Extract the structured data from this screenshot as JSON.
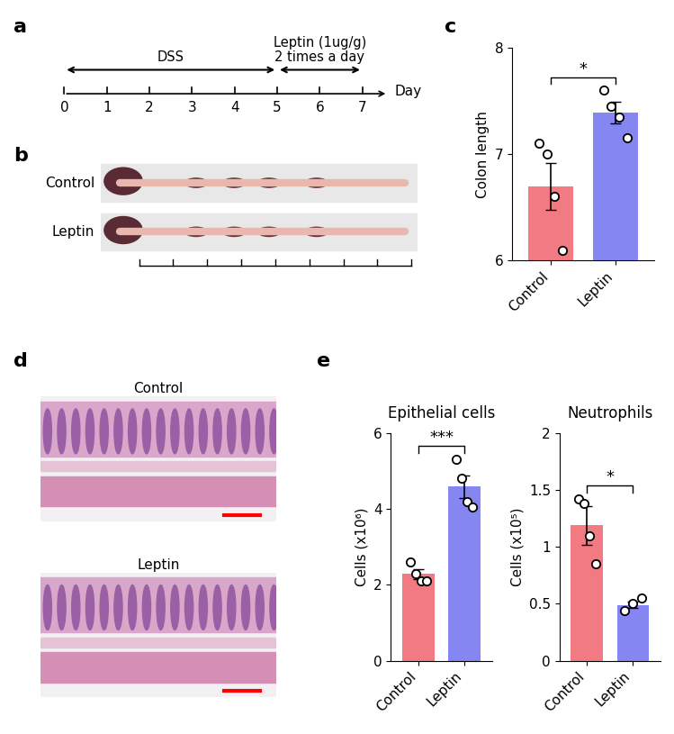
{
  "panel_labels": [
    "a",
    "b",
    "c",
    "d",
    "e"
  ],
  "timeline": {
    "days": [
      0,
      1,
      2,
      3,
      4,
      5,
      6,
      7
    ],
    "axis_label": "Day",
    "phases": [
      {
        "label": "DSS",
        "start": 0,
        "end": 5
      },
      {
        "label": "Leptin (1ug/g)\n2 times a day",
        "start": 5,
        "end": 7
      }
    ]
  },
  "photos": {
    "rows": [
      "Control",
      "Leptin"
    ]
  },
  "histology": {
    "rows": [
      "Control",
      "Leptin"
    ]
  },
  "chart_data": [
    {
      "type": "bar",
      "ylabel": "Colon length",
      "categories": [
        "Control",
        "Leptin"
      ],
      "values": [
        6.7,
        7.39
      ],
      "errors": [
        0.22,
        0.1
      ],
      "points": [
        [
          7.1,
          7.0,
          6.6,
          6.1
        ],
        [
          7.6,
          7.45,
          7.35,
          7.15
        ]
      ],
      "colors": [
        "#f27a82",
        "#8686f2"
      ],
      "ylim": [
        6,
        8
      ],
      "yticks": [
        6,
        7,
        8
      ],
      "significance": "*"
    },
    {
      "type": "bar",
      "title": "Epithelial cells",
      "ylabel": "Cells (x10⁶)",
      "categories": [
        "Control",
        "Leptin"
      ],
      "values": [
        2.28,
        4.59
      ],
      "errors": [
        0.13,
        0.3
      ],
      "points": [
        [
          2.6,
          2.3,
          2.1,
          2.1
        ],
        [
          5.3,
          4.8,
          4.2,
          4.05
        ]
      ],
      "colors": [
        "#f27a82",
        "#8686f2"
      ],
      "ylim": [
        0,
        6
      ],
      "yticks": [
        0,
        2,
        4,
        6
      ],
      "significance": "***"
    },
    {
      "type": "bar",
      "title": "Neutrophils",
      "ylabel": "Cells (x10⁵)",
      "categories": [
        "Control",
        "Leptin"
      ],
      "values": [
        1.19,
        0.49
      ],
      "errors": [
        0.17,
        0.03
      ],
      "points": [
        [
          1.42,
          1.38,
          1.1,
          0.85
        ],
        [
          0.44,
          0.5,
          0.55
        ]
      ],
      "colors": [
        "#f27a82",
        "#8686f2"
      ],
      "ylim": [
        0,
        2
      ],
      "yticks": [
        0,
        0.5,
        1,
        1.5,
        2
      ],
      "significance": "*"
    }
  ]
}
